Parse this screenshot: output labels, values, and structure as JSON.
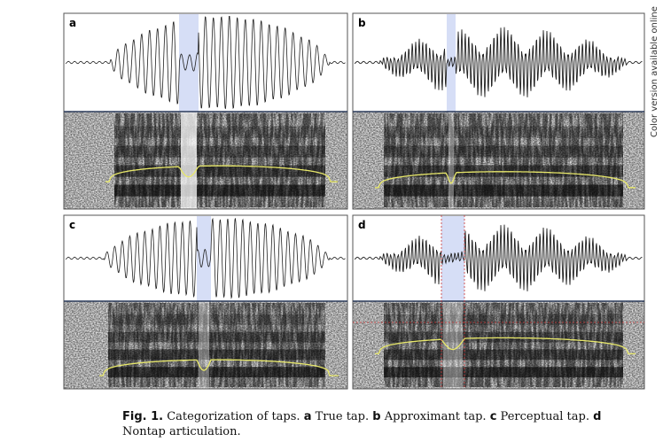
{
  "panels": [
    {
      "label": "a"
    },
    {
      "label": "b"
    },
    {
      "label": "c"
    },
    {
      "label": "d"
    }
  ],
  "side_note": "Color version available online",
  "caption": {
    "label": "Fig. 1.",
    "text": "Categorization of taps.",
    "items": [
      {
        "label": "a",
        "text": "True tap."
      },
      {
        "label": "b",
        "text": "Approximant tap."
      },
      {
        "label": "c",
        "text": "Perceptual tap."
      },
      {
        "label": "d",
        "text": "Nontap articulation."
      }
    ]
  }
}
